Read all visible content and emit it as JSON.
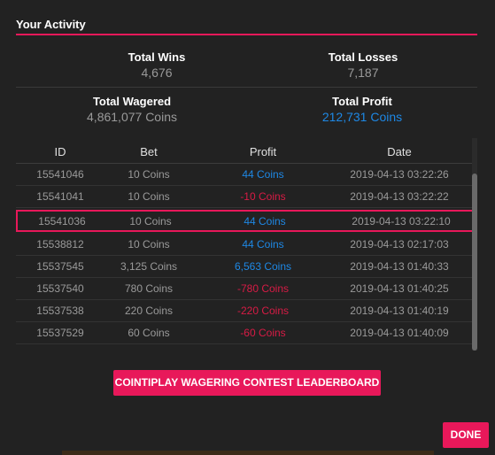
{
  "header": {
    "title": "Your Activity"
  },
  "stats": {
    "total_wins_label": "Total Wins",
    "total_wins_value": "4,676",
    "total_losses_label": "Total Losses",
    "total_losses_value": "7,187",
    "total_wagered_label": "Total Wagered",
    "total_wagered_value": "4,861,077 Coins",
    "total_profit_label": "Total Profit",
    "total_profit_value": "212,731 Coins"
  },
  "table": {
    "headers": [
      "ID",
      "Bet",
      "Profit",
      "Date"
    ],
    "rows": [
      {
        "id": "15541046",
        "bet": "10 Coins",
        "profit": "44 Coins",
        "date": "2019-04-13 03:22:26",
        "sign": "pos"
      },
      {
        "id": "15541041",
        "bet": "10 Coins",
        "profit": "-10 Coins",
        "date": "2019-04-13 03:22:22",
        "sign": "neg"
      },
      {
        "id": "15541036",
        "bet": "10 Coins",
        "profit": "44 Coins",
        "date": "2019-04-13 03:22:10",
        "sign": "pos"
      },
      {
        "id": "15538812",
        "bet": "10 Coins",
        "profit": "44 Coins",
        "date": "2019-04-13 02:17:03",
        "sign": "pos"
      },
      {
        "id": "15537545",
        "bet": "3,125 Coins",
        "profit": "6,563 Coins",
        "date": "2019-04-13 01:40:33",
        "sign": "pos"
      },
      {
        "id": "15537540",
        "bet": "780 Coins",
        "profit": "-780 Coins",
        "date": "2019-04-13 01:40:25",
        "sign": "neg"
      },
      {
        "id": "15537538",
        "bet": "220 Coins",
        "profit": "-220 Coins",
        "date": "2019-04-13 01:40:19",
        "sign": "neg"
      },
      {
        "id": "15537529",
        "bet": "60 Coins",
        "profit": "-60 Coins",
        "date": "2019-04-13 01:40:09",
        "sign": "neg"
      }
    ]
  },
  "buttons": {
    "contest_label": "COINTIPLAY WAGERING CONTEST LEADERBOARD",
    "done_label": "DONE"
  },
  "colors": {
    "accent": "#e8185a",
    "positive": "#1e88e5",
    "negative": "#d81b45"
  }
}
